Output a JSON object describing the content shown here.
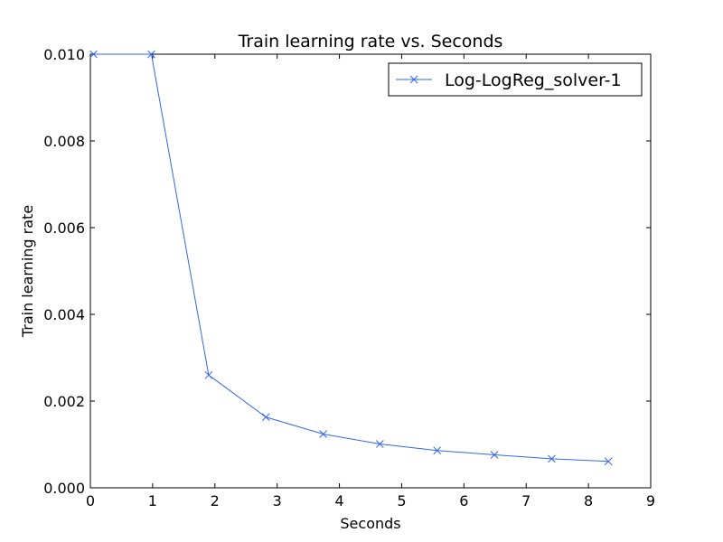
{
  "chart_data": {
    "type": "line",
    "title": "Train learning rate  vs. Seconds",
    "xlabel": "Seconds",
    "ylabel": "Train learning rate",
    "xlim": [
      0,
      9
    ],
    "ylim": [
      0.0,
      0.01
    ],
    "x_ticks": [
      0,
      1,
      2,
      3,
      4,
      5,
      6,
      7,
      8,
      9
    ],
    "x_tick_labels": [
      "0",
      "1",
      "2",
      "3",
      "4",
      "5",
      "6",
      "7",
      "8",
      "9"
    ],
    "y_ticks": [
      0.0,
      0.002,
      0.004,
      0.006,
      0.008,
      0.01
    ],
    "y_tick_labels": [
      "0.000",
      "0.002",
      "0.004",
      "0.006",
      "0.008",
      "0.010"
    ],
    "grid": false,
    "legend_position": "top-right",
    "series": [
      {
        "name": "Log-LogReg_solver-1",
        "color": "#3366ee",
        "marker": "x",
        "x": [
          0.05,
          0.98,
          1.9,
          2.82,
          3.74,
          4.65,
          5.57,
          6.49,
          7.41,
          8.32
        ],
        "y": [
          0.01,
          0.01,
          0.0026,
          0.00163,
          0.00124,
          0.00101,
          0.00086,
          0.00076,
          0.00067,
          0.00061
        ]
      }
    ]
  }
}
